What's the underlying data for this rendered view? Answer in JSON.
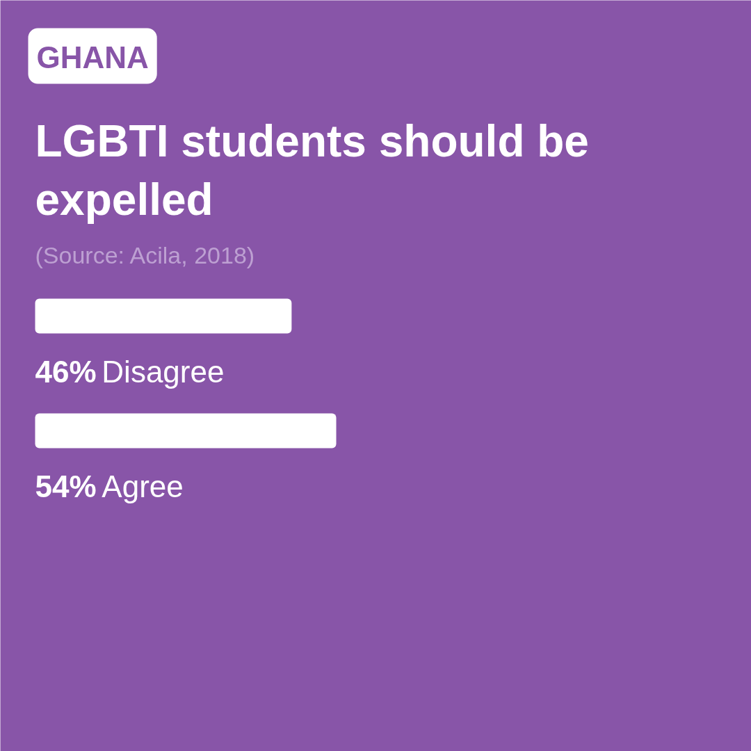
{
  "chart_data": {
    "type": "bar",
    "orientation": "horizontal",
    "subtitle": "GHANA",
    "title": "LGBTI students should be expelled",
    "annotations": [
      "(Source: Acila, 2018)"
    ],
    "categories": [
      "Disagree",
      "Agree"
    ],
    "values": [
      46,
      54
    ],
    "value_labels": [
      "46%",
      "54%"
    ],
    "color": "#ffffff",
    "tick_labels": false
  }
}
